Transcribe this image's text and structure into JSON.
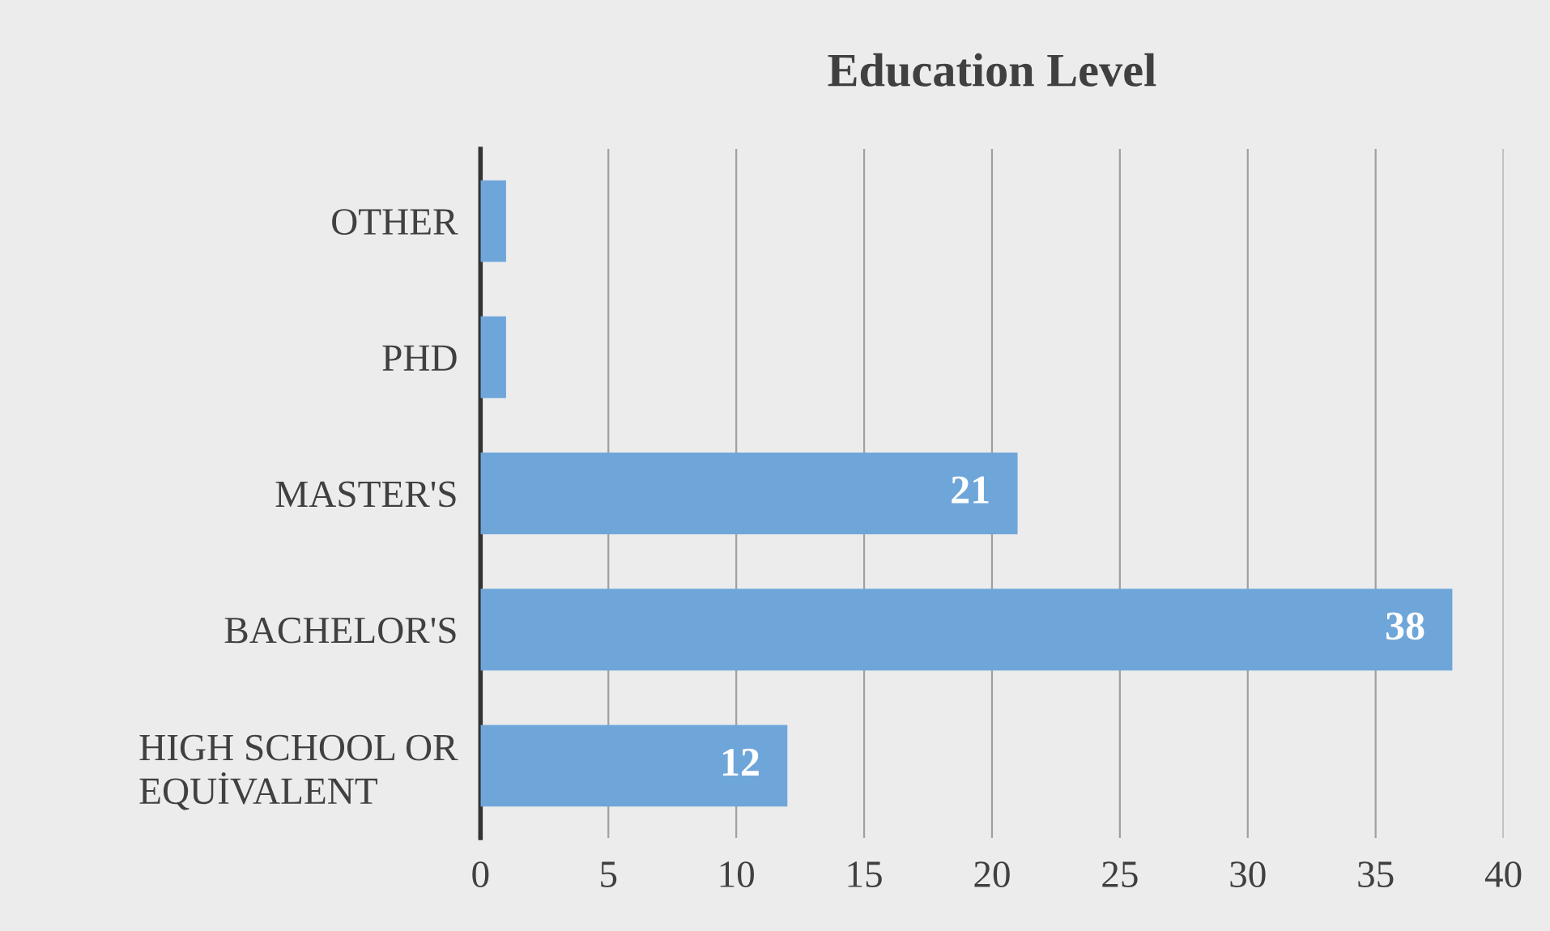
{
  "chart_data": {
    "type": "bar",
    "orientation": "horizontal",
    "title": "Education Level",
    "categories": [
      "OTHER",
      "PHD",
      "MASTER'S",
      "BACHELOR'S",
      "HIGH SCHOOL OR\nEQUİVALENT"
    ],
    "values": [
      1,
      1,
      21,
      38,
      12
    ],
    "value_labels": [
      null,
      null,
      "21",
      "38",
      "12"
    ],
    "color": "#6fa6da",
    "xlim": [
      0,
      40
    ],
    "xticks": [
      0,
      5,
      10,
      15,
      20,
      25,
      30,
      35,
      40
    ],
    "grid": "x",
    "legend": false
  }
}
